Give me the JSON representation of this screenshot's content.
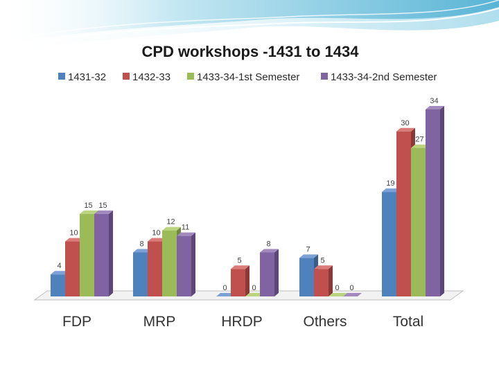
{
  "colors": {
    "series": [
      "#4F81BD",
      "#C0504D",
      "#9BBB59",
      "#8064A2"
    ],
    "series_dark": [
      "#385D8A",
      "#8C3836",
      "#71893F",
      "#5C4776"
    ],
    "series_top": [
      "#7BA1D6",
      "#D97C79",
      "#BAD47F",
      "#A28ABF"
    ],
    "wave_light": "#CDEBF4",
    "wave_mid": "#9FD6E8",
    "wave_dark": "#5FB8D6"
  },
  "chart_data": {
    "type": "bar",
    "title": "CPD workshops -1431 to 1434",
    "xlabel": "",
    "ylabel": "",
    "ylim": [
      0,
      34
    ],
    "grid": false,
    "legend_position": "top",
    "categories": [
      "FDP",
      "MRP",
      "HRDP",
      "Others",
      "Total"
    ],
    "series": [
      {
        "name": "1431-32",
        "values": [
          4,
          8,
          0,
          7,
          19
        ]
      },
      {
        "name": "1432-33",
        "values": [
          10,
          10,
          5,
          5,
          30
        ]
      },
      {
        "name": "1433-34-1st Semester",
        "values": [
          15,
          12,
          0,
          0,
          27
        ]
      },
      {
        "name": "1433-34-2nd Semester",
        "values": [
          15,
          11,
          8,
          0,
          34
        ]
      }
    ]
  }
}
